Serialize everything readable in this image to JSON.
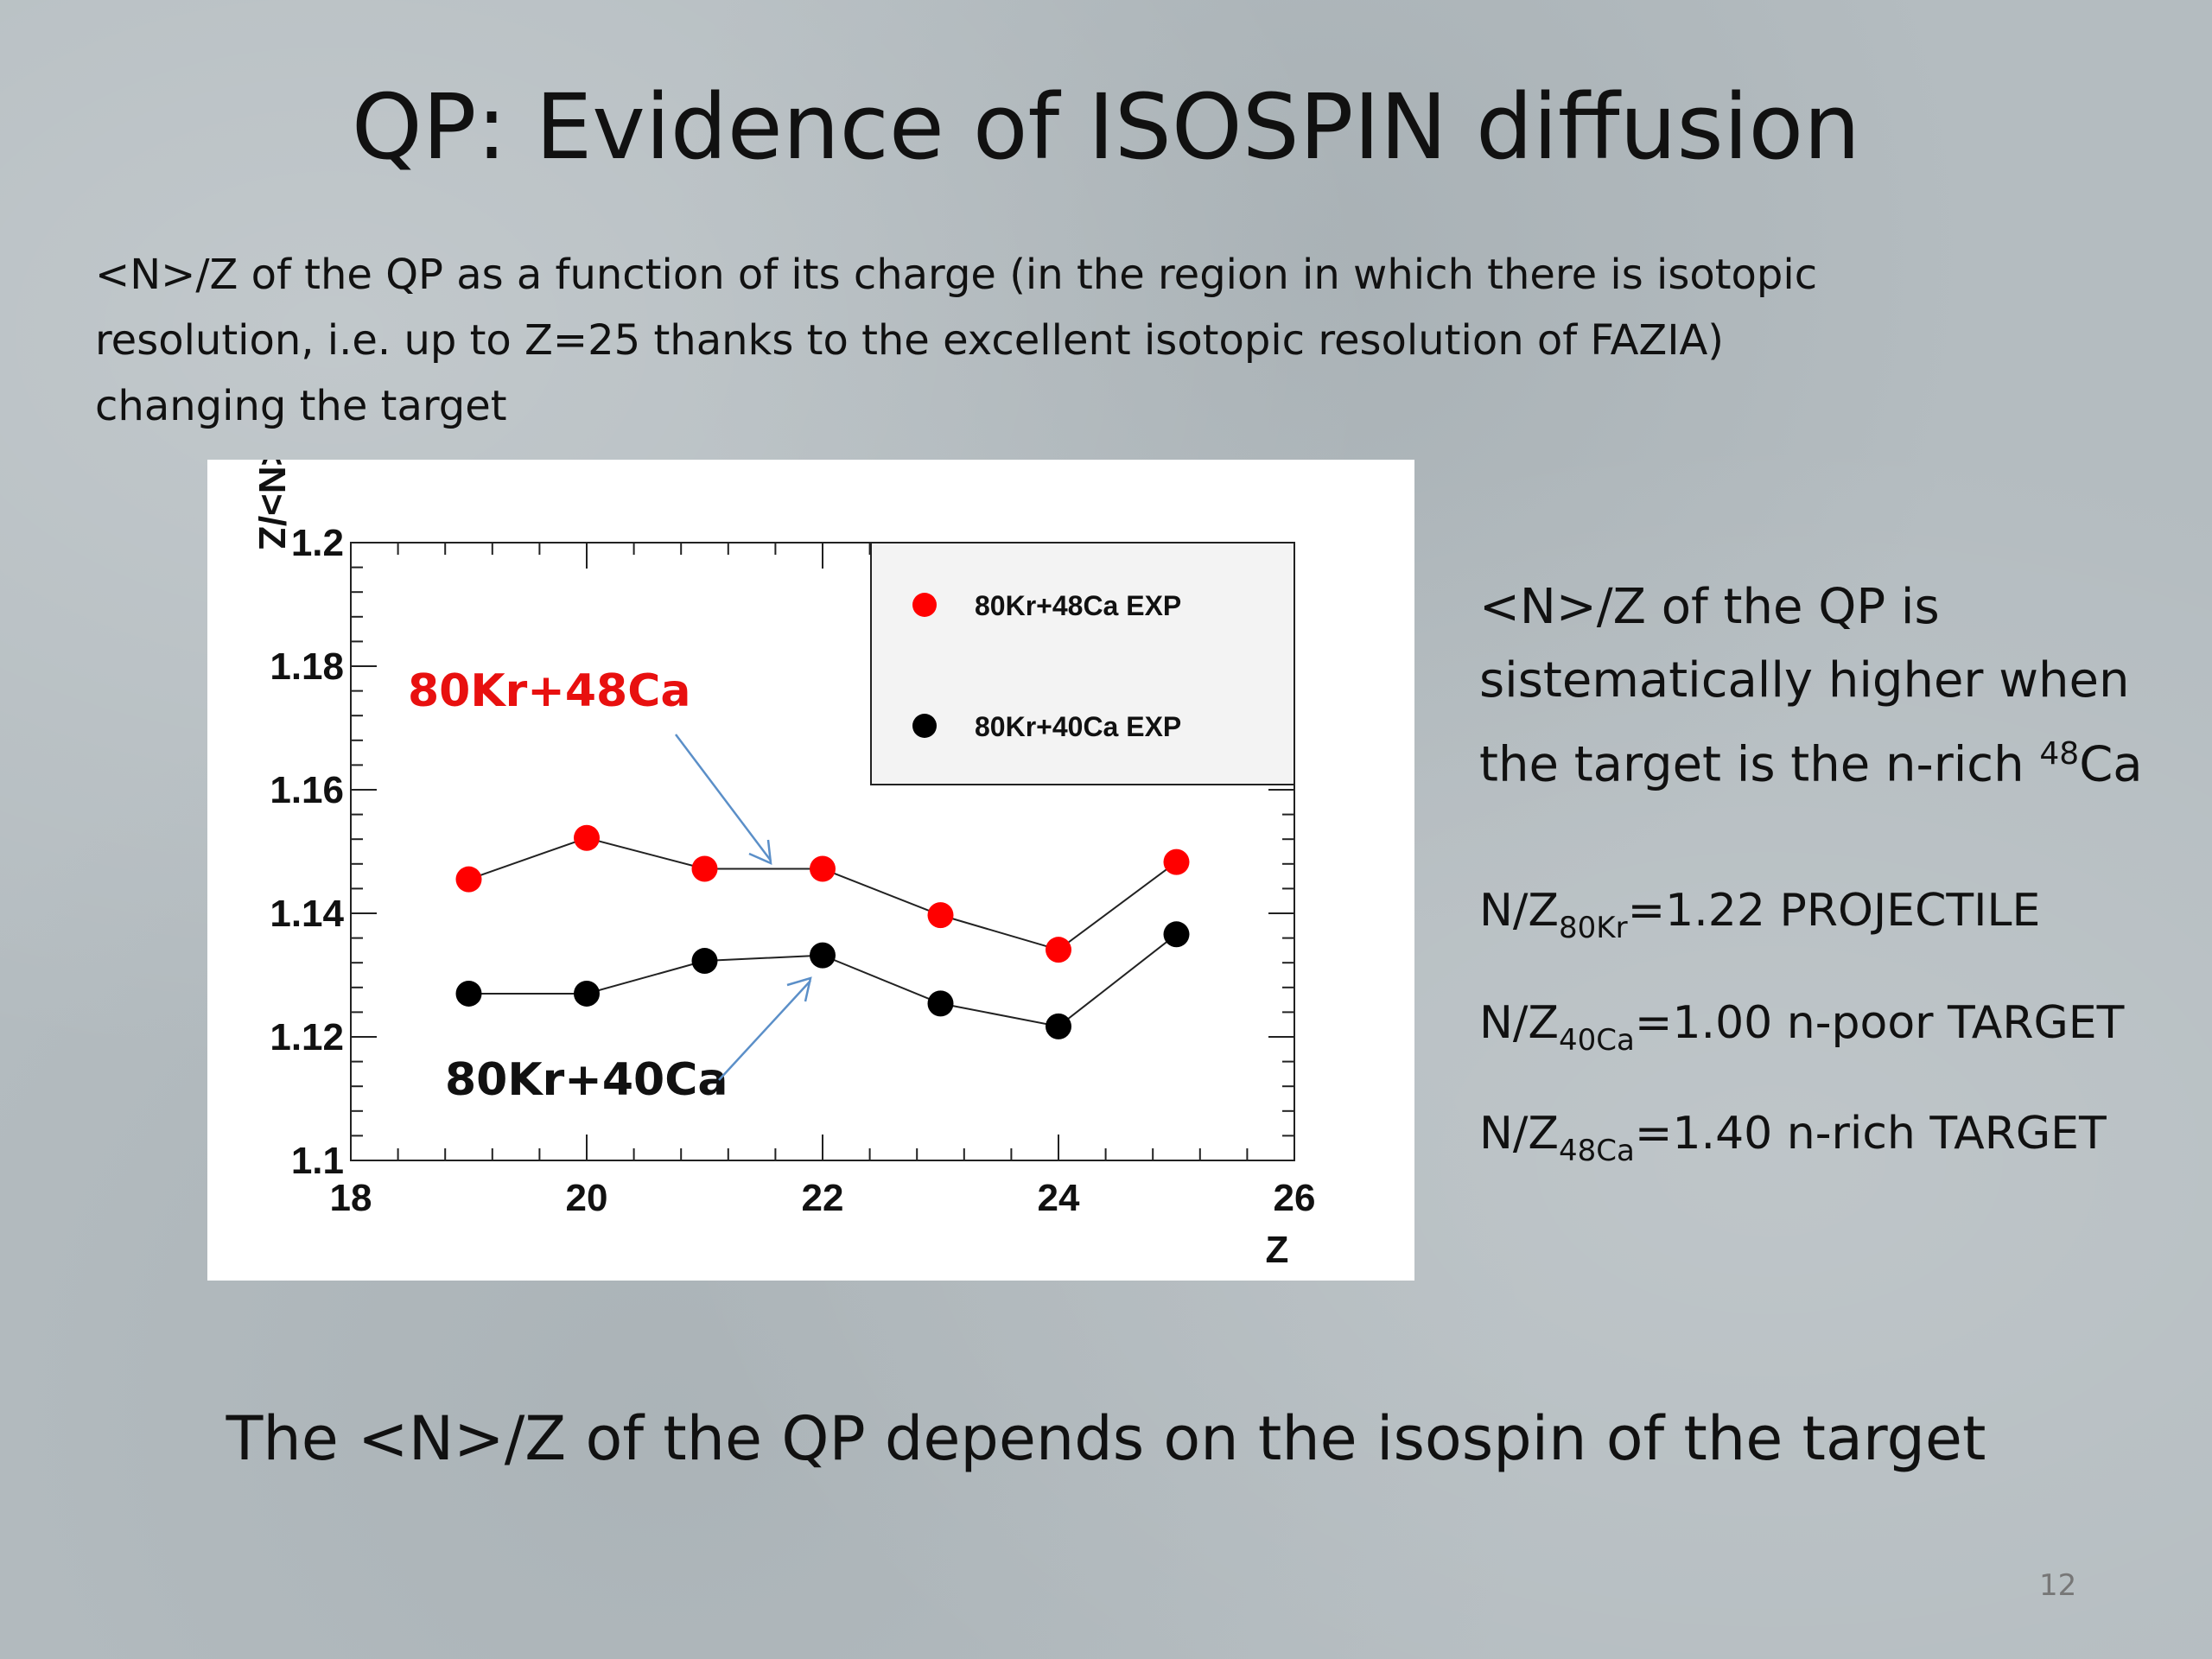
{
  "slide": {
    "title": "QP: Evidence of ISOSPIN diffusion",
    "intro_lines": [
      "<N>/Z of the QP as a function of its charge (in the region in which there is isotopic",
      "resolution, i.e. up to Z=25 thanks to the excellent isotopic resolution of FAZIA)",
      "changing the target"
    ],
    "conclusion": {
      "lines": [
        "<N>/Z of the QP is",
        "sistematically higher when"
      ],
      "line3_prefix": "the target is the n-rich ",
      "line3_sup": "48",
      "line3_suffix": "Ca"
    },
    "ratios": [
      {
        "prefix": "N/Z",
        "sub": "80Kr",
        "rest": "=1.22 PROJECTILE"
      },
      {
        "prefix": "N/Z",
        "sub": "40Ca",
        "rest": "=1.00 n-poor TARGET"
      },
      {
        "prefix": "N/Z",
        "sub": "48Ca",
        "rest": "=1.40 n-rich TARGET"
      }
    ],
    "summary": "The <N>/Z of the QP depends on the isospin of the target",
    "page_number": "12"
  },
  "chart_data": {
    "type": "scatter",
    "title": "",
    "xlabel": "Z",
    "ylabel": "<N>/Z",
    "xlim": [
      18,
      26
    ],
    "ylim": [
      1.1,
      1.2
    ],
    "x_ticks": [
      18,
      20,
      22,
      24,
      26
    ],
    "x_tick_labels": [
      "18",
      "20",
      "22",
      "24",
      "26"
    ],
    "y_ticks": [
      1.1,
      1.12,
      1.14,
      1.16,
      1.18,
      1.2
    ],
    "y_tick_labels": [
      "1.1",
      "1.12",
      "1.14",
      "1.16",
      "1.18",
      "1.2"
    ],
    "grid": false,
    "legend_position": "top-right",
    "series": [
      {
        "name": "80Kr+48Ca EXP",
        "annotation": "80Kr+48Ca",
        "color": "#ff0000",
        "x": [
          19,
          20,
          21,
          22,
          23,
          24,
          25
        ],
        "y": [
          1.1455,
          1.1522,
          1.1472,
          1.1472,
          1.1397,
          1.1341,
          1.1483
        ]
      },
      {
        "name": "80Kr+40Ca EXP",
        "annotation": "80Kr+40Ca",
        "color": "#000000",
        "x": [
          19,
          20,
          21,
          22,
          23,
          24,
          25
        ],
        "y": [
          1.127,
          1.127,
          1.1323,
          1.1332,
          1.1254,
          1.1217,
          1.1366
        ]
      }
    ]
  }
}
